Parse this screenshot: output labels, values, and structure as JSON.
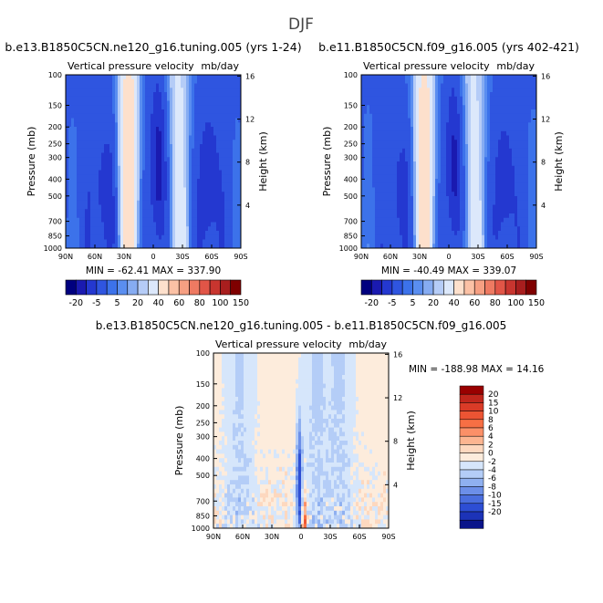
{
  "figure": {
    "title": "DJF"
  },
  "chart_data": [
    {
      "type": "heatmap",
      "title": "b.e13.B1850C5CN.ne120_g16.tuning.005 (yrs 1-24)",
      "subtitle": "Vertical pressure velocity",
      "units": "mb/day",
      "ylabel": "Pressure (mb)",
      "ylabel_right": "Height (km)",
      "x_ticks": [
        "90N",
        "60N",
        "30N",
        "0",
        "30S",
        "60S",
        "90S"
      ],
      "y_ticks": [
        "100",
        "150",
        "200",
        "250",
        "300",
        "400",
        "500",
        "700",
        "850",
        "1000"
      ],
      "y_ticks_right": [
        "16",
        "12",
        "8",
        "4"
      ],
      "y_scale": "log",
      "ylim": [
        100,
        1000
      ],
      "stats_text": "MIN = -62.41   MAX = 337.90",
      "min": -62.41,
      "max": 337.9
    },
    {
      "type": "heatmap",
      "title": "b.e11.B1850C5CN.f09_g16.005 (yrs 402-421)",
      "subtitle": "Vertical pressure velocity",
      "units": "mb/day",
      "ylabel": "Pressure (mb)",
      "ylabel_right": "Height (km)",
      "x_ticks": [
        "90N",
        "60N",
        "30N",
        "0",
        "30S",
        "60S",
        "90S"
      ],
      "y_ticks": [
        "100",
        "150",
        "200",
        "250",
        "300",
        "400",
        "500",
        "700",
        "850",
        "1000"
      ],
      "y_ticks_right": [
        "16",
        "12",
        "8",
        "4"
      ],
      "y_scale": "log",
      "ylim": [
        100,
        1000
      ],
      "stats_text": "MIN = -40.49   MAX = 339.07",
      "min": -40.49,
      "max": 339.07
    },
    {
      "type": "heatmap",
      "title": "b.e13.B1850C5CN.ne120_g16.tuning.005 - b.e11.B1850C5CN.f09_g16.005",
      "subtitle": "Vertical pressure velocity",
      "units": "mb/day",
      "ylabel": "Pressure (mb)",
      "ylabel_right": "Height (km)",
      "x_ticks": [
        "90N",
        "60N",
        "30N",
        "0",
        "30S",
        "60S",
        "90S"
      ],
      "y_ticks": [
        "100",
        "150",
        "200",
        "250",
        "300",
        "400",
        "500",
        "700",
        "850",
        "1000"
      ],
      "y_ticks_right": [
        "16",
        "12",
        "8",
        "4"
      ],
      "y_scale": "log",
      "ylim": [
        100,
        1000
      ],
      "stats_text": "MIN = -188.98   MAX =  14.16",
      "min": -188.98,
      "max": 14.16
    }
  ],
  "colorbar_top": {
    "labels": [
      "-20",
      "-5",
      "5",
      "20",
      "40",
      "60",
      "80",
      "100",
      "150"
    ],
    "colors": [
      "#00007f",
      "#1a1ab0",
      "#2438d0",
      "#2f55e0",
      "#3c72ea",
      "#5a8ef0",
      "#86acf2",
      "#b5ccf7",
      "#dce8fb",
      "#fde0cc",
      "#fbc1a5",
      "#f69f82",
      "#ee7a62",
      "#e15547",
      "#c8352f",
      "#a81e1e",
      "#7f0000"
    ]
  },
  "colorbar_diff": {
    "labels": [
      "20",
      "15",
      "10",
      "8",
      "6",
      "4",
      "2",
      "0",
      "-2",
      "-4",
      "-6",
      "-8",
      "-10",
      "-15",
      "-20"
    ],
    "colors": [
      "#990000",
      "#c0261c",
      "#da3b27",
      "#ec5433",
      "#f76f44",
      "#fb9068",
      "#fcb591",
      "#fdd8bf",
      "#fdecdc",
      "#d6e6fb",
      "#b4cdf7",
      "#8fb0f0",
      "#6c8fe8",
      "#4a6ede",
      "#2d4ed4",
      "#1c33b8",
      "#0a148a"
    ]
  }
}
